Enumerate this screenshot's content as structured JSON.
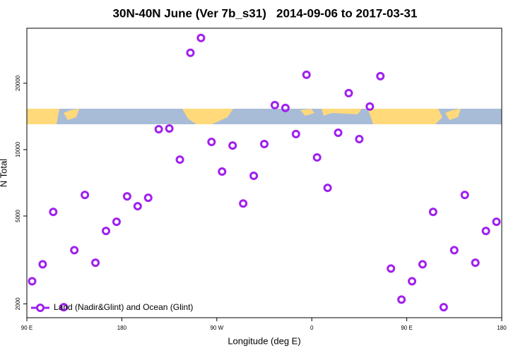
{
  "chart_data": {
    "type": "scatter",
    "title": "30N-40N June (Ver 7b_s31)   2014-09-06 to 2017-03-31",
    "x_label": "Longitude (deg E)",
    "y_label": "N Total",
    "log_y": true,
    "legend_position": "lower left",
    "xlim": [
      90,
      540
    ],
    "ylim": [
      1730,
      35500
    ],
    "xticks": [
      {
        "value": 90,
        "label": "90 E"
      },
      {
        "value": 180,
        "label": "180"
      },
      {
        "value": 270,
        "label": "90 W"
      },
      {
        "value": 360,
        "label": "0"
      },
      {
        "value": 450,
        "label": "90 E"
      },
      {
        "value": 540,
        "label": "180"
      }
    ],
    "yticks": [
      2000,
      5000,
      10000,
      20000
    ],
    "series": [
      {
        "name": "Land (Nadir&Glint) and Ocean (Glint)",
        "color": "#a020f0",
        "x": [
          95,
          105,
          115,
          125,
          135,
          145,
          155,
          165,
          175,
          185,
          195,
          205,
          215,
          225,
          235,
          245,
          255,
          265,
          275,
          285,
          295,
          305,
          315,
          325,
          335,
          345,
          355,
          365,
          375,
          385,
          395,
          405,
          415,
          425,
          435,
          445,
          455,
          465,
          475,
          485,
          495,
          505,
          515,
          525,
          535
        ],
        "values": [
          2530,
          3020,
          5220,
          1930,
          3500,
          6230,
          3070,
          4280,
          4710,
          6140,
          5540,
          6050,
          12380,
          12470,
          9010,
          27470,
          32070,
          10840,
          7950,
          10440,
          5700,
          7610,
          10600,
          15910,
          15450,
          11760,
          21850,
          9220,
          6710,
          11930,
          18040,
          11160,
          15680,
          21530,
          2890,
          2090,
          2530,
          3020,
          5220,
          1930,
          3500,
          6230,
          3070,
          4280,
          4710
        ]
      }
    ]
  }
}
